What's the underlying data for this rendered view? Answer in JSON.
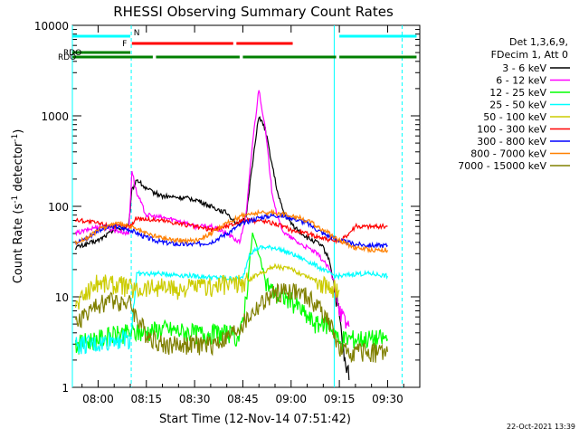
{
  "chart_data": {
    "type": "line",
    "title": "RHESSI Observing Summary Count Rates",
    "xlabel": "Start Time (12-Nov-14 07:51:42)",
    "ylabel_main": "Count Rate (s",
    "ylabel_exp": "-1",
    "ylabel_tail": " detector",
    "ylabel_exp2": "-1",
    "ylabel_close": ")",
    "yscale": "log",
    "xlim_minutes": [
      -8.0,
      100.0
    ],
    "ylim": [
      1,
      10000
    ],
    "x_tick_labels": [
      "08:00",
      "08:15",
      "08:30",
      "08:45",
      "09:00",
      "09:15",
      "09:30"
    ],
    "x_tick_minutes": [
      0,
      15,
      30,
      45,
      60,
      75,
      90
    ],
    "y_tick_labels": [
      "1",
      "10",
      "100",
      "1000",
      "10000"
    ],
    "y_tick_values": [
      1,
      10,
      100,
      1000,
      10000
    ],
    "legend_header": [
      "Det 1,3,6,9,",
      "FDecim 1, Att 0"
    ],
    "timestamp": "22-Oct-2021 13:39",
    "series": [
      {
        "name": "3 - 6 keV",
        "color": "#000000",
        "x": [
          -7,
          0,
          5,
          9.5,
          10.5,
          12,
          15,
          20,
          25,
          30,
          35,
          40,
          44,
          46,
          48,
          50,
          52,
          54,
          56,
          58,
          60,
          62,
          65,
          68,
          70,
          72,
          74,
          75,
          76,
          77,
          78
        ],
        "y": [
          35,
          42,
          55,
          60,
          150,
          200,
          155,
          130,
          125,
          120,
          100,
          85,
          60,
          80,
          300,
          1000,
          700,
          300,
          130,
          80,
          65,
          55,
          45,
          40,
          35,
          25,
          10,
          6,
          3,
          1.5,
          1.5
        ]
      },
      {
        "name": "6 - 12 keV",
        "color": "#ff00ff",
        "x": [
          -7,
          0,
          5,
          9.5,
          10.5,
          12,
          15,
          20,
          25,
          30,
          35,
          40,
          44,
          46,
          48,
          50,
          52,
          54,
          56,
          58,
          60,
          62,
          65,
          68,
          70,
          72,
          74,
          75,
          76,
          77,
          78
        ],
        "y": [
          50,
          60,
          55,
          50,
          250,
          140,
          80,
          75,
          70,
          60,
          60,
          50,
          40,
          80,
          500,
          2000,
          700,
          150,
          70,
          50,
          45,
          40,
          35,
          30,
          25,
          20,
          12,
          8,
          6,
          5,
          5
        ]
      },
      {
        "name": "12 - 25 keV",
        "color": "#00ff00",
        "x": [
          -7,
          0,
          8,
          12,
          20,
          30,
          40,
          44,
          46,
          48,
          50,
          52,
          54,
          56,
          58,
          60,
          62,
          65,
          68,
          70,
          72,
          74,
          75,
          76,
          80,
          85,
          90
        ],
        "y": [
          3,
          3.5,
          4,
          4,
          4.5,
          4,
          4,
          3.5,
          10,
          50,
          30,
          15,
          12,
          10,
          10,
          9,
          8,
          6,
          5,
          5,
          5,
          4,
          3,
          3.5,
          3.5,
          3.5,
          3.5
        ]
      },
      {
        "name": "25 - 50 keV",
        "color": "#00ffff",
        "x": [
          -7,
          -3,
          0,
          5,
          10,
          12,
          20,
          30,
          40,
          45,
          47,
          50,
          55,
          60,
          65,
          70,
          72,
          74,
          75,
          76,
          80,
          85,
          90
        ],
        "y": [
          3,
          3,
          3,
          3.5,
          3.5,
          18,
          18,
          17,
          16,
          16,
          30,
          35,
          35,
          30,
          25,
          20,
          18,
          17,
          17,
          17,
          18,
          18,
          17
        ]
      },
      {
        "name": "50 - 100 keV",
        "color": "#cccc00",
        "x": [
          -7,
          -3,
          0,
          5,
          10,
          12,
          15,
          20,
          25,
          30,
          35,
          40,
          45,
          50,
          55,
          60,
          65,
          70,
          75
        ],
        "y": [
          8,
          12,
          15,
          14,
          13,
          12,
          13,
          13,
          12,
          13,
          13,
          14,
          14,
          18,
          22,
          20,
          17,
          14,
          12
        ]
      },
      {
        "name": "100 - 300 keV",
        "color": "#ff0000",
        "x": [
          -7,
          -5,
          0,
          5,
          10,
          12,
          15,
          20,
          25,
          30,
          35,
          40,
          45,
          50,
          55,
          60,
          65,
          70,
          75,
          80,
          85,
          90
        ],
        "y": [
          70,
          70,
          65,
          60,
          60,
          75,
          72,
          70,
          65,
          60,
          55,
          60,
          70,
          70,
          65,
          55,
          50,
          45,
          40,
          60,
          60,
          60
        ]
      },
      {
        "name": "300 - 800 keV",
        "color": "#0000ff",
        "x": [
          -7,
          -3,
          0,
          5,
          10,
          15,
          20,
          25,
          30,
          35,
          40,
          45,
          50,
          55,
          60,
          65,
          70,
          75,
          80,
          85,
          90
        ],
        "y": [
          40,
          45,
          55,
          60,
          55,
          45,
          40,
          38,
          38,
          40,
          50,
          65,
          75,
          80,
          75,
          65,
          50,
          42,
          38,
          37,
          37
        ]
      },
      {
        "name": "800 - 7000 keV",
        "color": "#ff8000",
        "x": [
          -7,
          -3,
          0,
          5,
          10,
          15,
          20,
          25,
          30,
          35,
          40,
          45,
          50,
          55,
          60,
          65,
          70,
          75,
          80,
          85,
          90
        ],
        "y": [
          40,
          45,
          55,
          65,
          60,
          50,
          45,
          42,
          42,
          50,
          65,
          80,
          85,
          85,
          80,
          70,
          55,
          42,
          35,
          33,
          33
        ]
      },
      {
        "name": "7000 - 15000 keV",
        "color": "#808000",
        "x": [
          -7,
          -5,
          -3,
          0,
          2,
          5,
          10,
          12,
          15,
          20,
          25,
          30,
          35,
          40,
          45,
          50,
          55,
          60,
          65,
          70,
          72,
          74,
          75,
          76,
          80,
          85,
          90
        ],
        "y": [
          5,
          6,
          7,
          8,
          9,
          9.5,
          8.5,
          6,
          4,
          3,
          3,
          3,
          3,
          3.5,
          5,
          8,
          11,
          12,
          10,
          7,
          5,
          3.5,
          2.5,
          2.5,
          2.5,
          2.5,
          2.5
        ]
      }
    ],
    "flags": [
      {
        "label": "N",
        "color": "#00ffff",
        "segments": [
          [
            -8,
            10
          ],
          [
            75,
            99
          ]
        ]
      },
      {
        "label": "F",
        "color": "#ff0000",
        "segments": [
          [
            10.5,
            42
          ],
          [
            43,
            60.5
          ]
        ]
      },
      {
        "label": "RDO",
        "color": "#008000",
        "segments": [
          [
            -8,
            -4.5
          ],
          [
            -4.5,
            10
          ]
        ]
      },
      {
        "label": "RDO",
        "color": "#008000",
        "segments": [
          [
            -8,
            17
          ],
          [
            18,
            44
          ],
          [
            45,
            74
          ],
          [
            75,
            99
          ]
        ]
      }
    ],
    "vertical_markers": [
      {
        "x": -8,
        "color": "#00ffff",
        "style": "solid"
      },
      {
        "x": 10.3,
        "color": "#00ffff",
        "style": "dashed"
      },
      {
        "x": 73.4,
        "color": "#00ffff",
        "style": "solid"
      },
      {
        "x": 94.5,
        "color": "#00ffff",
        "style": "dashed"
      }
    ]
  }
}
